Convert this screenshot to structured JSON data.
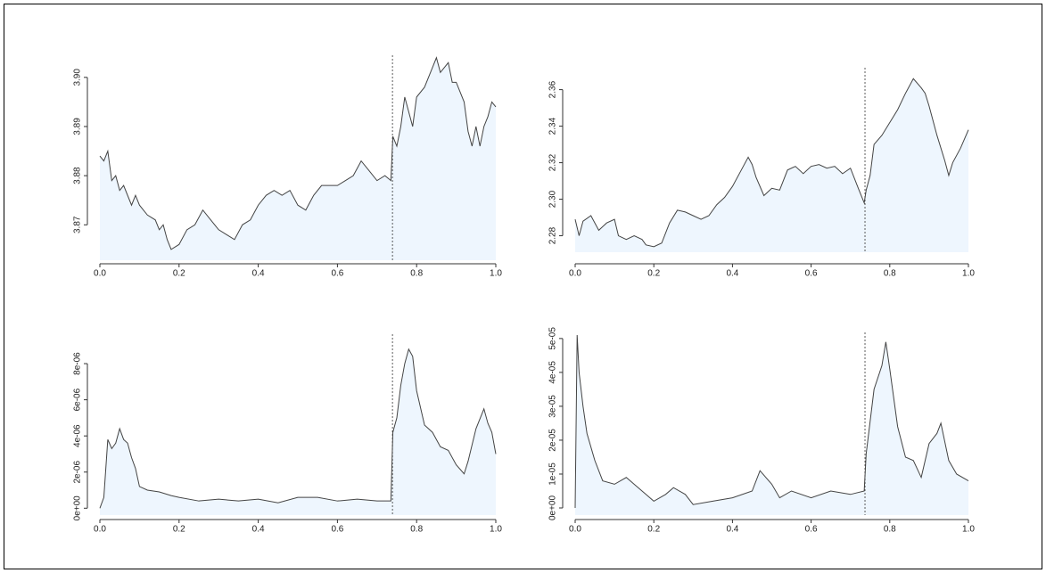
{
  "chart_data": [
    {
      "type": "area",
      "color": "#444444",
      "fill": "#eef6fe",
      "vline": 0.739,
      "x": [
        0,
        0.01,
        0.02,
        0.03,
        0.04,
        0.05,
        0.06,
        0.08,
        0.09,
        0.1,
        0.12,
        0.14,
        0.15,
        0.16,
        0.17,
        0.18,
        0.2,
        0.22,
        0.24,
        0.26,
        0.28,
        0.3,
        0.32,
        0.34,
        0.36,
        0.38,
        0.4,
        0.42,
        0.44,
        0.46,
        0.48,
        0.5,
        0.52,
        0.54,
        0.56,
        0.58,
        0.6,
        0.62,
        0.64,
        0.66,
        0.68,
        0.7,
        0.72,
        0.735,
        0.74,
        0.75,
        0.76,
        0.77,
        0.78,
        0.79,
        0.8,
        0.82,
        0.84,
        0.85,
        0.86,
        0.88,
        0.89,
        0.9,
        0.92,
        0.93,
        0.94,
        0.95,
        0.96,
        0.97,
        0.98,
        0.99,
        1
      ],
      "values": [
        3.884,
        3.883,
        3.885,
        3.879,
        3.88,
        3.877,
        3.878,
        3.874,
        3.876,
        3.874,
        3.872,
        3.871,
        3.869,
        3.87,
        3.867,
        3.865,
        3.866,
        3.869,
        3.87,
        3.873,
        3.871,
        3.869,
        3.868,
        3.867,
        3.87,
        3.871,
        3.874,
        3.876,
        3.877,
        3.876,
        3.877,
        3.874,
        3.873,
        3.876,
        3.878,
        3.878,
        3.878,
        3.879,
        3.88,
        3.883,
        3.881,
        3.879,
        3.88,
        3.879,
        3.888,
        3.886,
        3.89,
        3.896,
        3.893,
        3.89,
        3.896,
        3.898,
        3.902,
        3.904,
        3.901,
        3.903,
        3.899,
        3.899,
        3.895,
        3.889,
        3.886,
        3.89,
        3.886,
        3.89,
        3.892,
        3.895,
        3.894
      ],
      "xlim": [
        0,
        1
      ],
      "xticks": [
        {
          "value": 0,
          "label": "0.0"
        },
        0.2,
        0.4,
        0.6,
        0.8,
        {
          "value": 1,
          "label": "1.0"
        }
      ],
      "ylim": [
        3.8628,
        3.9045
      ],
      "yticks": [
        {
          "value": 3.87,
          "label": "3.87"
        },
        3.88,
        3.89,
        {
          "value": 3.9,
          "label": "3.90"
        }
      ]
    },
    {
      "type": "area",
      "color": "#444444",
      "fill": "#eef6fe",
      "vline": 0.737,
      "x": [
        0,
        0.01,
        0.02,
        0.04,
        0.06,
        0.08,
        0.1,
        0.11,
        0.13,
        0.15,
        0.17,
        0.18,
        0.2,
        0.22,
        0.24,
        0.26,
        0.28,
        0.3,
        0.32,
        0.34,
        0.36,
        0.38,
        0.4,
        0.42,
        0.44,
        0.45,
        0.46,
        0.48,
        0.5,
        0.52,
        0.54,
        0.56,
        0.58,
        0.6,
        0.62,
        0.64,
        0.66,
        0.68,
        0.7,
        0.72,
        0.735,
        0.74,
        0.75,
        0.76,
        0.78,
        0.8,
        0.82,
        0.84,
        0.86,
        0.88,
        0.89,
        0.9,
        0.92,
        0.94,
        0.95,
        0.96,
        0.98,
        0.99,
        1
      ],
      "values": [
        2.289,
        2.28,
        2.288,
        2.291,
        2.283,
        2.287,
        2.289,
        2.28,
        2.278,
        2.28,
        2.278,
        2.275,
        2.274,
        2.276,
        2.287,
        2.294,
        2.293,
        2.291,
        2.289,
        2.291,
        2.297,
        2.301,
        2.307,
        2.315,
        2.323,
        2.319,
        2.312,
        2.302,
        2.306,
        2.305,
        2.316,
        2.318,
        2.314,
        2.318,
        2.319,
        2.317,
        2.318,
        2.314,
        2.317,
        2.306,
        2.298,
        2.305,
        2.313,
        2.33,
        2.335,
        2.342,
        2.349,
        2.358,
        2.366,
        2.361,
        2.358,
        2.351,
        2.335,
        2.321,
        2.313,
        2.32,
        2.328,
        2.333,
        2.338
      ],
      "xlim": [
        0,
        1
      ],
      "xticks": [
        {
          "value": 0,
          "label": "0.0"
        },
        0.2,
        0.4,
        0.6,
        0.8,
        {
          "value": 1,
          "label": "1.0"
        }
      ],
      "ylim": [
        2.271,
        2.372
      ],
      "yticks": [
        2.28,
        {
          "value": 2.3,
          "label": "2.30"
        },
        2.32,
        2.34,
        2.36
      ]
    },
    {
      "type": "area",
      "color": "#444444",
      "fill": "#eef6fe",
      "vline": 0.739,
      "x": [
        0,
        0.01,
        0.02,
        0.03,
        0.04,
        0.05,
        0.06,
        0.07,
        0.08,
        0.09,
        0.1,
        0.12,
        0.15,
        0.18,
        0.2,
        0.25,
        0.3,
        0.35,
        0.4,
        0.45,
        0.5,
        0.55,
        0.6,
        0.65,
        0.7,
        0.735,
        0.74,
        0.75,
        0.76,
        0.77,
        0.78,
        0.79,
        0.8,
        0.82,
        0.84,
        0.86,
        0.88,
        0.9,
        0.92,
        0.93,
        0.95,
        0.97,
        0.98,
        0.99,
        1
      ],
      "values": [
        0,
        6e-07,
        3.8e-06,
        3.3e-06,
        3.6e-06,
        4.4e-06,
        3.8e-06,
        3.6e-06,
        2.8e-06,
        2.2e-06,
        1.2e-06,
        1e-06,
        9e-07,
        7e-07,
        6e-07,
        4e-07,
        5e-07,
        4e-07,
        5e-07,
        3e-07,
        6e-07,
        6e-07,
        4e-07,
        5e-07,
        4e-07,
        4e-07,
        4.2e-06,
        5e-06,
        6.8e-06,
        8e-06,
        8.8e-06,
        8.4e-06,
        6.5e-06,
        4.6e-06,
        4.2e-06,
        3.4e-06,
        3.2e-06,
        2.4e-06,
        1.9e-06,
        2.6e-06,
        4.4e-06,
        5.5e-06,
        4.7e-06,
        4.2e-06,
        3e-06
      ],
      "xlim": [
        0,
        1
      ],
      "xticks": [
        {
          "value": 0,
          "label": "0.0"
        },
        0.2,
        0.4,
        0.6,
        0.8,
        {
          "value": 1,
          "label": "1.0"
        }
      ],
      "ylim": [
        -3.8e-07,
        9.63e-06
      ],
      "yticks": [
        {
          "value": 0,
          "label": "0e+00"
        },
        {
          "value": 2e-06,
          "label": "2e-06"
        },
        {
          "value": 4e-06,
          "label": "4e-06"
        },
        {
          "value": 6e-06,
          "label": "6e-06"
        },
        {
          "value": 8e-06,
          "label": "8e-06"
        }
      ]
    },
    {
      "type": "area",
      "color": "#444444",
      "fill": "#eef6fe",
      "vline": 0.737,
      "x": [
        0,
        0.005,
        0.01,
        0.02,
        0.03,
        0.05,
        0.07,
        0.1,
        0.13,
        0.15,
        0.18,
        0.2,
        0.23,
        0.25,
        0.28,
        0.3,
        0.35,
        0.4,
        0.45,
        0.47,
        0.5,
        0.52,
        0.55,
        0.6,
        0.65,
        0.7,
        0.735,
        0.74,
        0.76,
        0.78,
        0.79,
        0.8,
        0.82,
        0.84,
        0.86,
        0.88,
        0.9,
        0.92,
        0.93,
        0.95,
        0.97,
        1
      ],
      "values": [
        0,
        5.1e-05,
        4e-05,
        3e-05,
        2.2e-05,
        1.4e-05,
        8e-06,
        7e-06,
        9e-06,
        7e-06,
        4e-06,
        2e-06,
        4e-06,
        6e-06,
        4e-06,
        1e-06,
        2e-06,
        3e-06,
        5e-06,
        1.1e-05,
        7e-06,
        3e-06,
        5e-06,
        3e-06,
        5e-06,
        4e-06,
        5e-06,
        1.6e-05,
        3.5e-05,
        4.2e-05,
        4.9e-05,
        4.1e-05,
        2.4e-05,
        1.5e-05,
        1.4e-05,
        9e-06,
        1.9e-05,
        2.2e-05,
        2.5e-05,
        1.4e-05,
        1e-05,
        8e-06
      ],
      "xlim": [
        0,
        1
      ],
      "xticks": [
        {
          "value": 0,
          "label": "0.0"
        },
        0.2,
        0.4,
        0.6,
        0.8,
        {
          "value": 1,
          "label": "1.0"
        }
      ],
      "ylim": [
        -2.1e-06,
        5.18e-05
      ],
      "yticks": [
        {
          "value": 0,
          "label": "0e+00"
        },
        {
          "value": 1e-05,
          "label": "1e-05"
        },
        {
          "value": 2e-05,
          "label": "2e-05"
        },
        {
          "value": 3e-05,
          "label": "3e-05"
        },
        {
          "value": 4e-05,
          "label": "4e-05"
        },
        {
          "value": 5e-05,
          "label": "5e-05"
        }
      ]
    }
  ]
}
